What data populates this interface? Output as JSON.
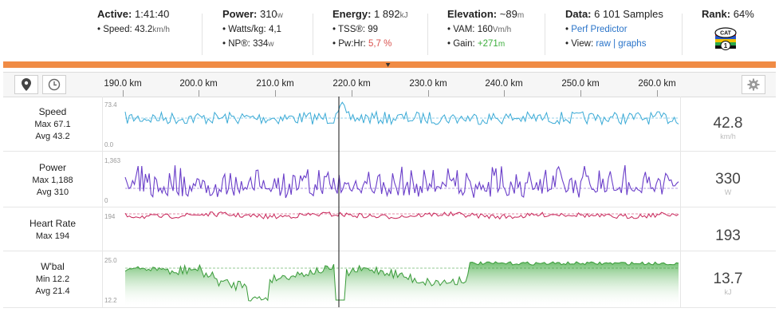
{
  "stats": {
    "active": {
      "label": "Active:",
      "value": "1:41:40",
      "speed_label": "• Speed:",
      "speed_value": "43.2",
      "speed_unit": "km/h"
    },
    "power": {
      "label": "Power:",
      "value": "310",
      "unit": "w",
      "wkg_label": "• Watts/kg:",
      "wkg_value": "4,1",
      "np_label": "• NP®:",
      "np_value": "334",
      "np_unit": "w"
    },
    "energy": {
      "label": "Energy:",
      "value": "1 892",
      "unit": "kJ",
      "tss_label": "• TSS®:",
      "tss_value": "99",
      "pwhr_label": "• Pw:Hr:",
      "pwhr_value": "5,7 %"
    },
    "elevation": {
      "label": "Elevation:",
      "value": "~89",
      "unit": "m",
      "vam_label": "• VAM:",
      "vam_value": "160",
      "vam_unit": "Vm/h",
      "gain_label": "• Gain:",
      "gain_value": "+271",
      "gain_unit": "m"
    },
    "data": {
      "label": "Data:",
      "value": "6 101 Samples",
      "predictor_bullet": "•",
      "predictor": "Perf Predictor",
      "view_label": "• View:",
      "raw": "raw",
      "divider": "|",
      "graphs": "graphs"
    },
    "rank": {
      "label": "Rank:",
      "value": "64%",
      "badge_text": "CAT",
      "badge_num": "1"
    }
  },
  "toolbar": {
    "ticks": [
      "190.0 km",
      "200.0 km",
      "210.0 km",
      "220.0 km",
      "230.0 km",
      "240.0 km",
      "250.0 km",
      "260.0 km"
    ]
  },
  "rows": {
    "speed": {
      "name": "Speed",
      "max": "Max 67.1",
      "avg": "Avg 43.2",
      "value": "42.8",
      "unit": "km/h",
      "axis_max": "73.4",
      "axis_min": "0.0"
    },
    "power": {
      "name": "Power",
      "max": "Max 1,188",
      "avg": "Avg 310",
      "value": "330",
      "unit": "W",
      "axis_max": "1,363",
      "axis_min": "0"
    },
    "heart": {
      "name": "Heart Rate",
      "max": "Max 194",
      "value": "193",
      "axis_max": "194"
    },
    "wbal": {
      "name": "W'bal",
      "min": "Min 12.2",
      "avg": "Avg 21.4",
      "value": "13.7",
      "unit": "kJ",
      "axis_max": "25.0",
      "axis_min": "12.2"
    }
  },
  "colors": {
    "accent": "#f08b45",
    "speed": "#3aaad6",
    "power": "#6a3ec9",
    "heart": "#c8265a",
    "wbal": "#3a9b3a"
  }
}
